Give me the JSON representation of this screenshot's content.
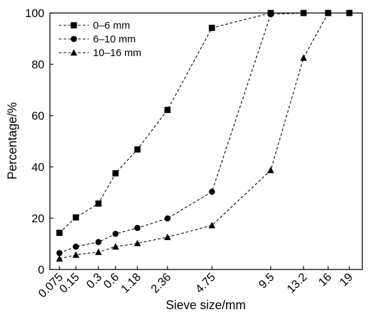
{
  "chart_data": {
    "type": "line",
    "xlabel": "Sieve size/mm",
    "ylabel": "Percentage/%",
    "categories": [
      "0.075",
      "0.15",
      "0.3",
      "0.6",
      "1.18",
      "2.36",
      "4.75",
      "9.5",
      "13.2",
      "16",
      "19"
    ],
    "ylim": [
      0,
      100
    ],
    "yticks": [
      0,
      20,
      40,
      60,
      80,
      100
    ],
    "grid": false,
    "legend_position": "top-left",
    "series": [
      {
        "name": "0–6 mm",
        "marker": "square",
        "values": [
          14.3,
          20.3,
          25.7,
          37.5,
          46.8,
          62.2,
          94.2,
          100,
          100,
          100,
          100
        ]
      },
      {
        "name": "6–10 mm",
        "marker": "circle",
        "values": [
          6.4,
          8.9,
          10.7,
          13.9,
          16.2,
          19.9,
          30.3,
          99.5,
          100,
          100,
          100
        ]
      },
      {
        "name": "10–16 mm",
        "marker": "triangle",
        "values": [
          4.2,
          5.7,
          6.8,
          8.9,
          10.2,
          12.6,
          17.2,
          38.7,
          82.5,
          100,
          100
        ]
      }
    ]
  }
}
